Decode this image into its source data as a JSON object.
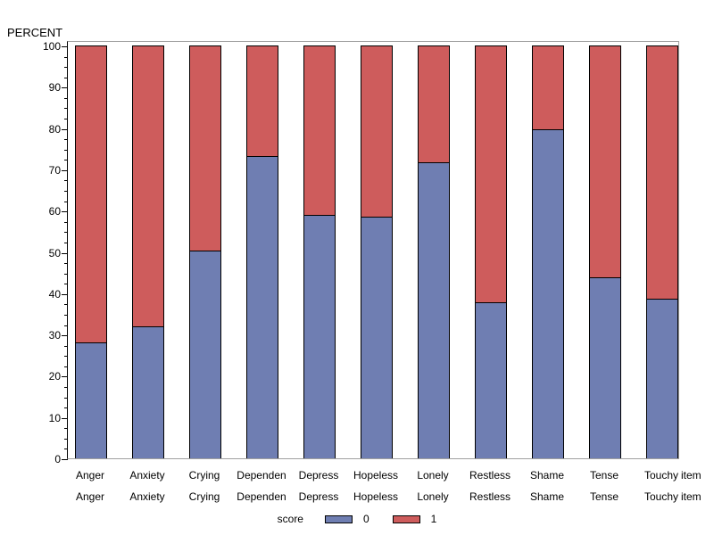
{
  "chart_data": {
    "type": "bar",
    "stacked": true,
    "orientation": "vertical",
    "ylabel": "PERCENT",
    "xlabel": "item",
    "categories": [
      "Anger",
      "Anxiety",
      "Crying",
      "Dependen",
      "Depress",
      "Hopeless",
      "Lonely",
      "Restless",
      "Shame",
      "Tense",
      "Touchy"
    ],
    "category_axis_rows": 2,
    "category_axis_suffix": "item",
    "series": [
      {
        "name": "0",
        "color": "#6f7eb2",
        "values": [
          28.0,
          31.8,
          50.4,
          73.4,
          58.9,
          58.5,
          71.9,
          37.7,
          79.9,
          43.8,
          38.6
        ]
      },
      {
        "name": "1",
        "color": "#ce5c5c",
        "values": [
          72.0,
          68.2,
          49.6,
          26.6,
          41.1,
          41.5,
          28.1,
          62.3,
          20.1,
          56.2,
          61.4
        ]
      }
    ],
    "ylim": [
      0,
      100
    ],
    "y_ticks": [
      0,
      10,
      20,
      30,
      40,
      50,
      60,
      70,
      80,
      90,
      100
    ],
    "y_minor_step": 2.5,
    "grid": false,
    "legend": {
      "title": "score",
      "position": "bottom",
      "entries": [
        {
          "label": "0",
          "color": "#6f7eb2"
        },
        {
          "label": "1",
          "color": "#ce5c5c"
        }
      ]
    }
  },
  "style": {
    "frame_color": "#a0a0a0",
    "axis_color": "#000000",
    "bar_outline": "#000000",
    "background": "#ffffff"
  }
}
